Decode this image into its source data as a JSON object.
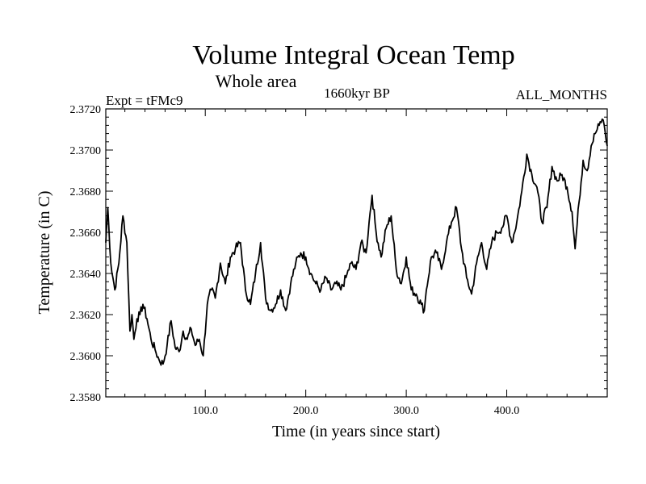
{
  "chart_data": {
    "type": "line",
    "title": "Volume Integral Ocean Temp",
    "subtitle": "Whole area",
    "experiment": "Expt = tFMc9",
    "period": "1660kyr BP",
    "months": "ALL_MONTHS",
    "xlabel": "Time (in years since start)",
    "ylabel": "Temperature (in C)",
    "xlim": [
      1,
      500
    ],
    "ylim": [
      2.358,
      2.372
    ],
    "xticks": [
      100,
      200,
      300,
      400
    ],
    "xtick_labels": [
      "100.0",
      "200.0",
      "300.0",
      "400.0"
    ],
    "yticks": [
      2.358,
      2.36,
      2.362,
      2.364,
      2.366,
      2.368,
      2.37,
      2.372
    ],
    "ytick_labels": [
      "2.3580",
      "2.3600",
      "2.3620",
      "2.3640",
      "2.3660",
      "2.3680",
      "2.3700",
      "2.3720"
    ],
    "series": [
      {
        "name": "Volume Integral Ocean Temp",
        "color": "#000000",
        "x": [
          1,
          3,
          6,
          10,
          14,
          18,
          22,
          25,
          27,
          29,
          32,
          35,
          38,
          42,
          46,
          50,
          54,
          58,
          62,
          66,
          70,
          74,
          78,
          82,
          86,
          90,
          94,
          98,
          102,
          106,
          110,
          115,
          120,
          125,
          130,
          135,
          140,
          145,
          150,
          155,
          160,
          165,
          170,
          175,
          180,
          185,
          190,
          195,
          200,
          205,
          210,
          215,
          220,
          225,
          230,
          235,
          240,
          245,
          250,
          255,
          260,
          263,
          266,
          270,
          275,
          280,
          285,
          290,
          295,
          300,
          305,
          310,
          315,
          318,
          320,
          325,
          330,
          335,
          340,
          345,
          350,
          355,
          360,
          365,
          370,
          375,
          380,
          385,
          390,
          395,
          400,
          405,
          410,
          415,
          420,
          425,
          430,
          435,
          440,
          445,
          450,
          455,
          460,
          465,
          468,
          472,
          476,
          480,
          484,
          488,
          492,
          495,
          497,
          500
        ],
        "values": [
          2.3655,
          2.3672,
          2.3645,
          2.3632,
          2.3645,
          2.3668,
          2.3655,
          2.3612,
          2.362,
          2.3608,
          2.3618,
          2.362,
          2.3625,
          2.3618,
          2.3608,
          2.3603,
          2.3598,
          2.3596,
          2.3605,
          2.3617,
          2.3604,
          2.3602,
          2.3612,
          2.3608,
          2.3613,
          2.3605,
          2.3608,
          2.36,
          2.3625,
          2.3632,
          2.3628,
          2.3645,
          2.3635,
          2.3648,
          2.3652,
          2.3655,
          2.3632,
          2.3625,
          2.364,
          2.3655,
          2.3628,
          2.3622,
          2.3625,
          2.3632,
          2.3622,
          2.3635,
          2.3645,
          2.365,
          2.3648,
          2.364,
          2.3635,
          2.3632,
          2.3638,
          2.3632,
          2.3635,
          2.3632,
          2.3638,
          2.3645,
          2.3642,
          2.3655,
          2.365,
          2.3665,
          2.3678,
          2.366,
          2.3648,
          2.3662,
          2.3668,
          2.3642,
          2.3635,
          2.3648,
          2.3632,
          2.363,
          2.3625,
          2.3622,
          2.3632,
          2.3648,
          2.365,
          2.3642,
          2.3655,
          2.3665,
          2.3672,
          2.3652,
          2.3638,
          2.363,
          2.3645,
          2.3655,
          2.3642,
          2.3655,
          2.366,
          2.3662,
          2.3668,
          2.3655,
          2.3665,
          2.368,
          2.3698,
          2.3688,
          2.3682,
          2.3665,
          2.3672,
          2.3692,
          2.3685,
          2.3688,
          2.3682,
          2.367,
          2.3652,
          2.3675,
          2.3695,
          2.369,
          2.3702,
          2.3708,
          2.3712,
          2.3715,
          2.3712,
          2.3702
        ]
      }
    ]
  }
}
